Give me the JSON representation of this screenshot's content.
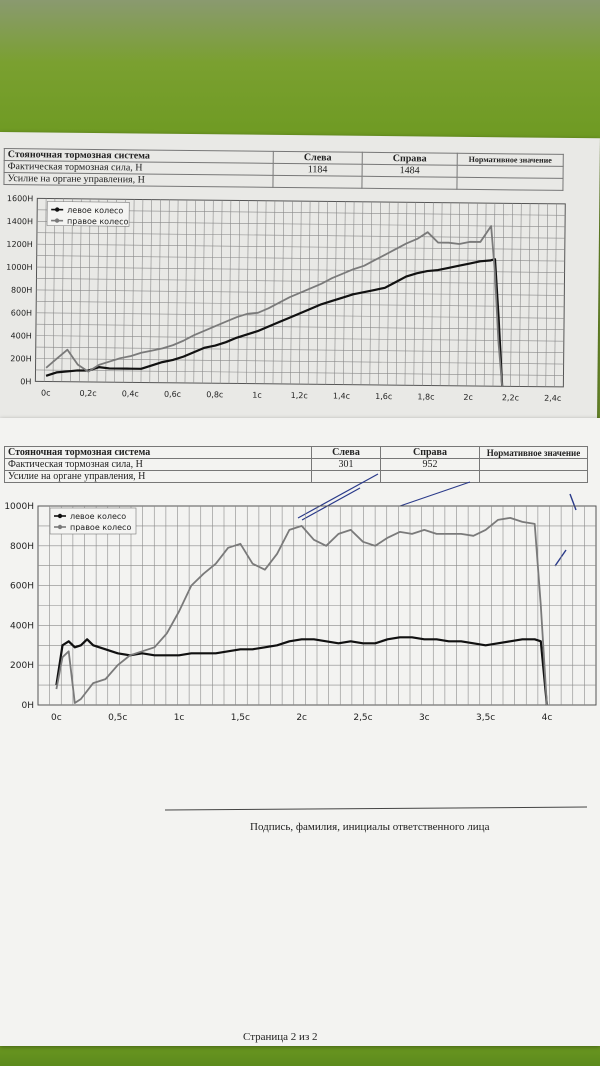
{
  "report1": {
    "title": "Стояночная тормозная система",
    "col_left": "Слева",
    "col_right": "Справа",
    "col_norm": "Нормативное значение",
    "row1_label": "Фактическая тормозная сила, Н",
    "row2_label": "Усилие на органе управления, Н",
    "left_value": "1184",
    "right_value": "1484"
  },
  "report2": {
    "title": "Стояночная тормозная система",
    "col_left": "Слева",
    "col_right": "Справа",
    "col_norm": "Нормативное значение",
    "row1_label": "Фактическая тормозная сила, Н",
    "row2_label": "Усилие на органе управления, Н",
    "left_value": "301",
    "right_value": "952"
  },
  "signature_caption": "Подпись, фамилия, инициалы ответственного лица",
  "page_number": "Страница 2 из 2",
  "colors": {
    "left_wheel": "#111111",
    "right_wheel": "#7a7a7a",
    "grid": "#8a8a8a",
    "paper": "#f1f1ef"
  },
  "chart_data": [
    {
      "type": "line",
      "y_tick_labels": [
        "0H",
        "200H",
        "400H",
        "600H",
        "800H",
        "1000H",
        "1200H",
        "1400H",
        "1600H"
      ],
      "x_tick_labels": [
        "0c",
        "0,2c",
        "0,4c",
        "0,6c",
        "0,8c",
        "1c",
        "1,2c",
        "1,4c",
        "1,6c",
        "1,8c",
        "2c",
        "2,2c",
        "2,4c"
      ],
      "ylim": [
        0,
        1600
      ],
      "xlim": [
        -0.05,
        2.45
      ],
      "grid": true,
      "legend": "top-left",
      "series": [
        {
          "name": "левое колесо",
          "color": "#111111",
          "x": [
            0,
            0.05,
            0.1,
            0.15,
            0.2,
            0.25,
            0.3,
            0.35,
            0.4,
            0.45,
            0.5,
            0.55,
            0.6,
            0.65,
            0.7,
            0.75,
            0.8,
            0.85,
            0.9,
            0.95,
            1.0,
            1.05,
            1.1,
            1.15,
            1.2,
            1.25,
            1.3,
            1.35,
            1.4,
            1.45,
            1.5,
            1.55,
            1.6,
            1.65,
            1.7,
            1.75,
            1.8,
            1.85,
            1.9,
            1.95,
            2.0,
            2.05,
            2.1,
            2.12,
            2.14,
            2.16
          ],
          "y": [
            50,
            80,
            90,
            100,
            100,
            130,
            120,
            120,
            120,
            120,
            150,
            180,
            200,
            230,
            270,
            310,
            330,
            360,
            400,
            430,
            460,
            500,
            540,
            580,
            620,
            660,
            700,
            730,
            760,
            790,
            810,
            830,
            850,
            900,
            950,
            980,
            1000,
            1010,
            1030,
            1050,
            1070,
            1090,
            1100,
            1110,
            600,
            0
          ]
        },
        {
          "name": "правое колесо",
          "color": "#7a7a7a",
          "x": [
            0,
            0.05,
            0.1,
            0.15,
            0.2,
            0.25,
            0.3,
            0.35,
            0.4,
            0.45,
            0.5,
            0.55,
            0.6,
            0.65,
            0.7,
            0.75,
            0.8,
            0.85,
            0.9,
            0.95,
            1.0,
            1.05,
            1.1,
            1.15,
            1.2,
            1.25,
            1.3,
            1.35,
            1.4,
            1.45,
            1.5,
            1.55,
            1.6,
            1.65,
            1.7,
            1.75,
            1.8,
            1.85,
            1.9,
            1.95,
            2.0,
            2.05,
            2.1,
            2.12,
            2.14,
            2.16
          ],
          "y": [
            120,
            200,
            280,
            150,
            90,
            150,
            180,
            210,
            230,
            260,
            280,
            300,
            330,
            370,
            420,
            460,
            500,
            540,
            580,
            610,
            620,
            660,
            710,
            760,
            800,
            840,
            880,
            930,
            970,
            1010,
            1040,
            1090,
            1140,
            1190,
            1240,
            1280,
            1340,
            1250,
            1250,
            1240,
            1260,
            1260,
            1400,
            1000,
            400,
            0
          ]
        }
      ]
    },
    {
      "type": "line",
      "y_tick_labels": [
        "0H",
        "200H",
        "400H",
        "600H",
        "800H",
        "1000H"
      ],
      "x_tick_labels": [
        "0c",
        "0,5c",
        "1c",
        "1,5c",
        "2c",
        "2,5c",
        "3c",
        "3,5c",
        "4c"
      ],
      "ylim": [
        0,
        1000
      ],
      "xlim": [
        -0.15,
        4.4
      ],
      "grid": true,
      "legend": "top-left",
      "series": [
        {
          "name": "левое колесо",
          "color": "#111111",
          "x": [
            0,
            0.05,
            0.1,
            0.15,
            0.2,
            0.25,
            0.3,
            0.4,
            0.5,
            0.6,
            0.7,
            0.8,
            0.9,
            1.0,
            1.1,
            1.2,
            1.3,
            1.4,
            1.5,
            1.6,
            1.7,
            1.8,
            1.9,
            2.0,
            2.1,
            2.2,
            2.3,
            2.4,
            2.5,
            2.6,
            2.7,
            2.8,
            2.9,
            3.0,
            3.1,
            3.2,
            3.3,
            3.4,
            3.5,
            3.6,
            3.7,
            3.8,
            3.9,
            3.95,
            4.0
          ],
          "y": [
            100,
            300,
            320,
            290,
            300,
            330,
            300,
            280,
            260,
            250,
            260,
            250,
            250,
            250,
            260,
            260,
            260,
            270,
            280,
            280,
            290,
            300,
            320,
            330,
            330,
            320,
            310,
            320,
            310,
            310,
            330,
            340,
            340,
            330,
            330,
            320,
            320,
            310,
            300,
            310,
            320,
            330,
            330,
            320,
            0
          ]
        },
        {
          "name": "правое колесо",
          "color": "#7a7a7a",
          "x": [
            0,
            0.05,
            0.1,
            0.15,
            0.2,
            0.3,
            0.4,
            0.5,
            0.6,
            0.7,
            0.8,
            0.9,
            1.0,
            1.1,
            1.2,
            1.3,
            1.4,
            1.5,
            1.6,
            1.7,
            1.8,
            1.9,
            2.0,
            2.1,
            2.2,
            2.3,
            2.4,
            2.5,
            2.6,
            2.7,
            2.8,
            2.9,
            3.0,
            3.1,
            3.2,
            3.3,
            3.4,
            3.5,
            3.6,
            3.7,
            3.8,
            3.9,
            3.95,
            4.0
          ],
          "y": [
            80,
            240,
            270,
            10,
            30,
            110,
            130,
            200,
            250,
            270,
            290,
            360,
            470,
            600,
            660,
            710,
            790,
            810,
            710,
            680,
            760,
            880,
            900,
            830,
            800,
            860,
            880,
            820,
            800,
            840,
            870,
            860,
            880,
            860,
            860,
            860,
            850,
            880,
            930,
            940,
            920,
            910,
            500,
            0
          ]
        }
      ]
    }
  ]
}
